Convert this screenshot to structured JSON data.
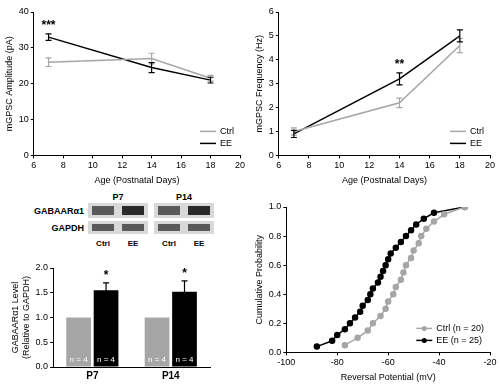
{
  "chart_data": [
    {
      "type": "line",
      "x_label": "Age (Postnatal Days)",
      "y_label": "mGPSC Amplitude (pA)",
      "x": [
        7,
        14,
        18
      ],
      "series": [
        {
          "name": "Ctrl",
          "color": "#a6a6a6",
          "values": [
            26,
            27,
            21.5
          ],
          "errors": [
            1.2,
            1.5,
            0.8
          ]
        },
        {
          "name": "EE",
          "color": "#000000",
          "values": [
            33,
            24.5,
            21
          ],
          "errors": [
            0.9,
            1.4,
            0.8
          ]
        }
      ],
      "xlim": [
        6,
        20
      ],
      "xticks": [
        6,
        8,
        10,
        12,
        14,
        16,
        18,
        20
      ],
      "ylim": [
        0,
        40
      ],
      "yticks": [
        0,
        10,
        20,
        30,
        40
      ],
      "legend": "lower right",
      "marker": "none",
      "line_style": "solid",
      "grid": false,
      "annotations": [
        {
          "text": "***",
          "x": 7
        }
      ]
    },
    {
      "type": "line",
      "x_label": "Age (Postnatal Days)",
      "y_label": "mGPSC Frequency (Hz)",
      "x": [
        7,
        14,
        18
      ],
      "series": [
        {
          "name": "Ctrl",
          "color": "#a6a6a6",
          "values": [
            1.0,
            2.2,
            4.6
          ],
          "errors": [
            0.15,
            0.2,
            0.3
          ]
        },
        {
          "name": "EE",
          "color": "#000000",
          "values": [
            0.9,
            3.2,
            5.0
          ],
          "errors": [
            0.15,
            0.25,
            0.25
          ]
        }
      ],
      "xlim": [
        6,
        20
      ],
      "xticks": [
        6,
        8,
        10,
        12,
        14,
        16,
        18,
        20
      ],
      "ylim": [
        0,
        6
      ],
      "yticks": [
        0,
        1,
        2,
        3,
        4,
        5,
        6
      ],
      "legend": "lower right",
      "marker": "none",
      "line_style": "solid",
      "grid": false,
      "annotations": [
        {
          "text": "**",
          "x": 14
        }
      ]
    },
    {
      "type": "bar",
      "y_label": [
        "GABAARα1 Level",
        "(Relative to GAPDH)"
      ],
      "categories": [
        "P7",
        "P14"
      ],
      "series": [
        {
          "name": "Ctrl",
          "color": "#a6a6a6",
          "values": [
            1,
            1
          ],
          "bar_labels": [
            "n = 4",
            "n = 4"
          ]
        },
        {
          "name": "EE",
          "color": "#000000",
          "values": [
            1.55,
            1.52
          ],
          "errors": [
            0.15,
            0.22
          ],
          "bar_labels": [
            "n = 4",
            "n = 4"
          ]
        }
      ],
      "ylim": [
        0,
        2
      ],
      "yticks": [
        {
          "value": 0,
          "label": "0.0"
        },
        {
          "value": 0.5,
          "label": "0.5"
        },
        {
          "value": 1,
          "label": "1.0"
        },
        {
          "value": 1.5,
          "label": "1.5"
        },
        {
          "value": 2,
          "label": "2.0"
        }
      ],
      "grid": false,
      "annotations": [
        {
          "text": "*",
          "category": "P7",
          "series": "EE"
        },
        {
          "text": "*",
          "category": "P14",
          "series": "EE"
        }
      ]
    },
    {
      "type": "line",
      "x_label": "Reversal Potential (mV)",
      "y_label": "Cumulative Probability",
      "series": [
        {
          "name": "Ctrl (n = 20)",
          "color": "#a6a6a6",
          "x": [
            -77,
            -72,
            -68,
            -66,
            -63,
            -61,
            -60,
            -58,
            -57,
            -55,
            -54,
            -53,
            -51,
            -50,
            -48,
            -47,
            -45,
            -42,
            -38,
            -30
          ],
          "values": [
            0.05,
            0.1,
            0.15,
            0.2,
            0.25,
            0.3,
            0.35,
            0.4,
            0.45,
            0.5,
            0.55,
            0.6,
            0.65,
            0.7,
            0.75,
            0.8,
            0.85,
            0.9,
            0.95,
            1.0
          ]
        },
        {
          "name": "EE (n = 25)",
          "color": "#000000",
          "x": [
            -88,
            -82,
            -80,
            -77,
            -75,
            -73,
            -71,
            -70,
            -68,
            -67,
            -66,
            -64,
            -63,
            -62,
            -61,
            -60,
            -59,
            -57,
            -55,
            -53,
            -51,
            -49,
            -46,
            -42,
            -30
          ],
          "values": [
            0.04,
            0.08,
            0.12,
            0.16,
            0.2,
            0.24,
            0.28,
            0.32,
            0.36,
            0.4,
            0.44,
            0.48,
            0.52,
            0.56,
            0.6,
            0.64,
            0.68,
            0.72,
            0.76,
            0.8,
            0.84,
            0.88,
            0.92,
            0.96,
            1.0
          ]
        }
      ],
      "xlim": [
        -100,
        -20
      ],
      "xticks": [
        -100,
        -80,
        -60,
        -40,
        -20
      ],
      "ylim": [
        0,
        1
      ],
      "yticks": [
        {
          "value": 0,
          "label": "0.0"
        },
        {
          "value": 0.2,
          "label": "0.2"
        },
        {
          "value": 0.4,
          "label": "0.4"
        },
        {
          "value": 0.6,
          "label": "0.6"
        },
        {
          "value": 0.8,
          "label": "0.8"
        },
        {
          "value": 1,
          "label": "1.0"
        }
      ],
      "legend": "lower right",
      "marker": "circle",
      "line_style": "solid",
      "grid": false
    }
  ],
  "blot": {
    "rows": [
      "GABAARα1",
      "GAPDH"
    ],
    "groups": [
      {
        "label": "P7",
        "lanes": [
          "Ctrl",
          "EE"
        ]
      },
      {
        "label": "P14",
        "lanes": [
          "Ctrl",
          "EE"
        ]
      }
    ]
  }
}
